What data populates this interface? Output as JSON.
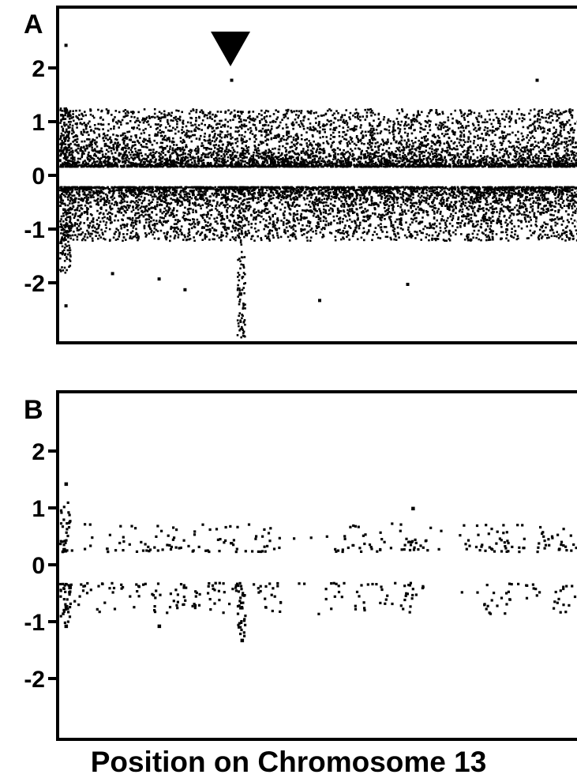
{
  "chart_data": {
    "type": "scatter",
    "xlabel": "Position on Chromosome 13",
    "panels": [
      {
        "letter": "A",
        "ylim": [
          -3,
          3
        ],
        "yticks": [
          2,
          1,
          0,
          -1,
          -2
        ],
        "series": [
          {
            "description_of_cloud": "dense log2-ratio probes",
            "band_upper": [
              0.18,
              1.25
            ],
            "band_lower": [
              -1.2,
              -0.2
            ],
            "notable_points": [
              {
                "x": 0.01,
                "y": 2.45
              },
              {
                "x": 0.33,
                "y": 1.8
              },
              {
                "x": 0.92,
                "y": 1.8
              },
              {
                "x": 0.5,
                "y": -2.3
              },
              {
                "x": 0.67,
                "y": -2.0
              },
              {
                "x": 0.24,
                "y": -2.1
              },
              {
                "x": 0.1,
                "y": -1.8
              },
              {
                "x": 0.19,
                "y": -1.9
              },
              {
                "x": 0.01,
                "y": -2.4
              }
            ],
            "deletion_dip": {
              "x": 0.35,
              "y_min": -3.0
            },
            "marker": {
              "x": 0.33,
              "shape": "down-triangle"
            }
          }
        ]
      },
      {
        "letter": "B",
        "ylim": [
          -3,
          3
        ],
        "yticks": [
          2,
          1,
          0,
          -1,
          -2
        ],
        "series": [
          {
            "description_of_cloud": "sparse probes",
            "band_upper": [
              0.25,
              0.75
            ],
            "band_lower": [
              -0.85,
              -0.3
            ],
            "notable_points": [
              {
                "x": 0.01,
                "y": 1.45
              },
              {
                "x": 0.68,
                "y": 1.02
              },
              {
                "x": 0.35,
                "y": -1.3
              },
              {
                "x": 0.19,
                "y": -1.05
              },
              {
                "x": 0.01,
                "y": -1.05
              }
            ],
            "deletion_dip": {
              "x": 0.35,
              "y_min": -1.3
            }
          }
        ]
      }
    ]
  }
}
